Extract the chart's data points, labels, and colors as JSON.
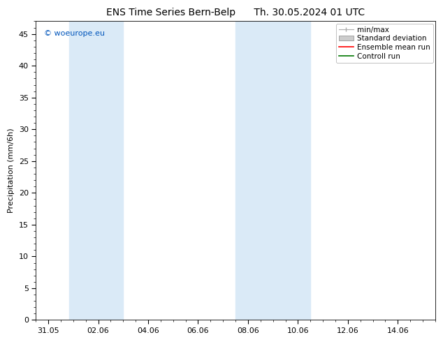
{
  "title": "ENS Time Series Bern-Belp      Th. 30.05.2024 01 UTC",
  "ylabel": "Precipitation (mm/6h)",
  "ylim": [
    0,
    47
  ],
  "yticks": [
    0,
    5,
    10,
    15,
    20,
    25,
    30,
    35,
    40,
    45
  ],
  "xtick_labels": [
    "31.05",
    "02.06",
    "04.06",
    "06.06",
    "08.06",
    "10.06",
    "12.06",
    "14.06"
  ],
  "xtick_positions": [
    0,
    2,
    4,
    6,
    8,
    10,
    12,
    14
  ],
  "xlim": [
    -0.5,
    15.5
  ],
  "shaded_bands": [
    {
      "x_start": 0.83,
      "x_end": 3.0,
      "color": "#daeaf7",
      "alpha": 1.0
    },
    {
      "x_start": 7.5,
      "x_end": 8.83,
      "color": "#daeaf7",
      "alpha": 1.0
    },
    {
      "x_start": 8.83,
      "x_end": 10.5,
      "color": "#daeaf7",
      "alpha": 1.0
    }
  ],
  "copyright_text": "© woeurope.eu",
  "copyright_color": "#0055bb",
  "copyright_fontsize": 8,
  "title_fontsize": 10,
  "axis_label_fontsize": 8,
  "tick_fontsize": 8,
  "legend_fontsize": 7.5,
  "background_color": "#ffffff",
  "legend_items": [
    {
      "label": "min/max",
      "color": "#aaaaaa",
      "style": "line_with_caps"
    },
    {
      "label": "Standard deviation",
      "color": "#cccccc",
      "style": "bar"
    },
    {
      "label": "Ensemble mean run",
      "color": "#ff0000",
      "style": "line"
    },
    {
      "label": "Controll run",
      "color": "#007700",
      "style": "line"
    }
  ]
}
